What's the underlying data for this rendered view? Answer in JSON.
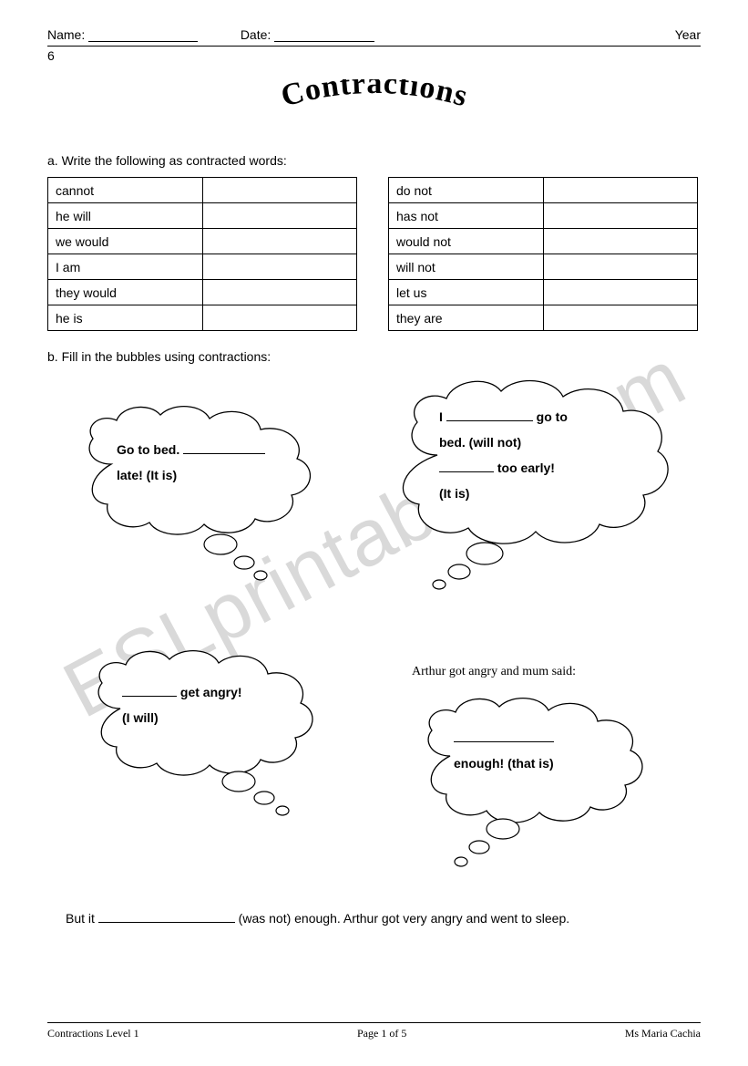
{
  "header": {
    "name_label": "Name:",
    "date_label": "Date:",
    "year_label": "Year",
    "year_num": "6"
  },
  "title": "Contractions",
  "section_a": {
    "instruction": "a.  Write the following as contracted words:",
    "left": [
      "cannot",
      "he will",
      "we would",
      "I am",
      "they would",
      "he is"
    ],
    "right": [
      "do not",
      "has not",
      "would not",
      "will not",
      "let us",
      "they are"
    ]
  },
  "section_b": {
    "instruction": "b.  Fill in the bubbles using contractions:",
    "bubble1": {
      "line1a": "Go to bed. ",
      "line2": "late! (It is)"
    },
    "bubble2": {
      "line1a": "I  ",
      "line1b": " go to",
      "line2": "bed. (will not)",
      "line3b": " too early!",
      "line4": "(It is)"
    },
    "bubble3": {
      "line1b": " get angry!",
      "line2": "(I will)"
    },
    "narration": "Arthur got angry and mum said:",
    "bubble4": {
      "line2": "enough! (that is)"
    },
    "sentence_a": "But it ",
    "sentence_b": " (was not) enough.  Arthur got very angry and went to sleep."
  },
  "footer": {
    "left": "Contractions Level 1",
    "center": "Page 1 of 5",
    "right": "Ms Maria Cachia"
  },
  "watermark": "ESLprintables.com"
}
